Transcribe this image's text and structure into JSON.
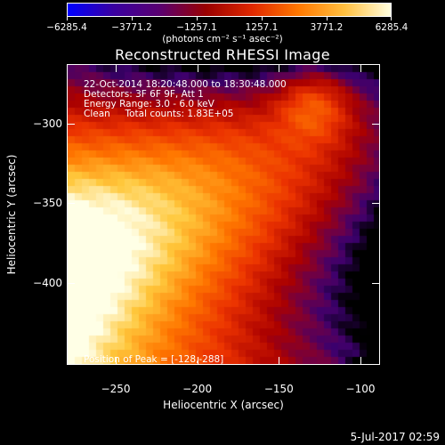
{
  "chart_data": {
    "type": "heatmap",
    "title": "Reconstructed RHESSI Image",
    "xlabel": "Heliocentric X (arcsec)",
    "ylabel": "Heliocentric Y (arcsec)",
    "xlim": [
      -280,
      -88
    ],
    "ylim": [
      -451,
      -263
    ],
    "xticks": [
      -250,
      -200,
      -150,
      -100
    ],
    "yticks": [
      -300,
      -350,
      -400
    ],
    "colorbar": {
      "ticks": [
        -6285.4,
        -3771.2,
        -1257.1,
        1257.1,
        3771.2,
        6285.4
      ],
      "tick_labels": [
        "−6285.4",
        "−3771.2",
        "−1257.1",
        "1257.1",
        "3771.2",
        "6285.4"
      ],
      "unit": "(photons cm⁻² s⁻¹ asec⁻²)",
      "colors": [
        "#0000ff",
        "#3a00a0",
        "#5a0070",
        "#9a0000",
        "#e02800",
        "#ff7800",
        "#ffc040",
        "#ffffe0"
      ]
    },
    "annotations": [
      "22-Oct-2014 18:20:48.000 to 18:30:48.000",
      "Detectors: 3F 6F 9F, Att 1",
      "Energy Range: 3.0 - 6.0 keV",
      "Clean     Total counts: 1.83E+05"
    ],
    "peak_label": "Position of Peak = [-128,-288]",
    "peak": {
      "x": -128,
      "y": -288,
      "value": 6285.4
    },
    "min_value": -500
  },
  "footer": {
    "date_stamp": "5-Jul-2017 02:59"
  }
}
